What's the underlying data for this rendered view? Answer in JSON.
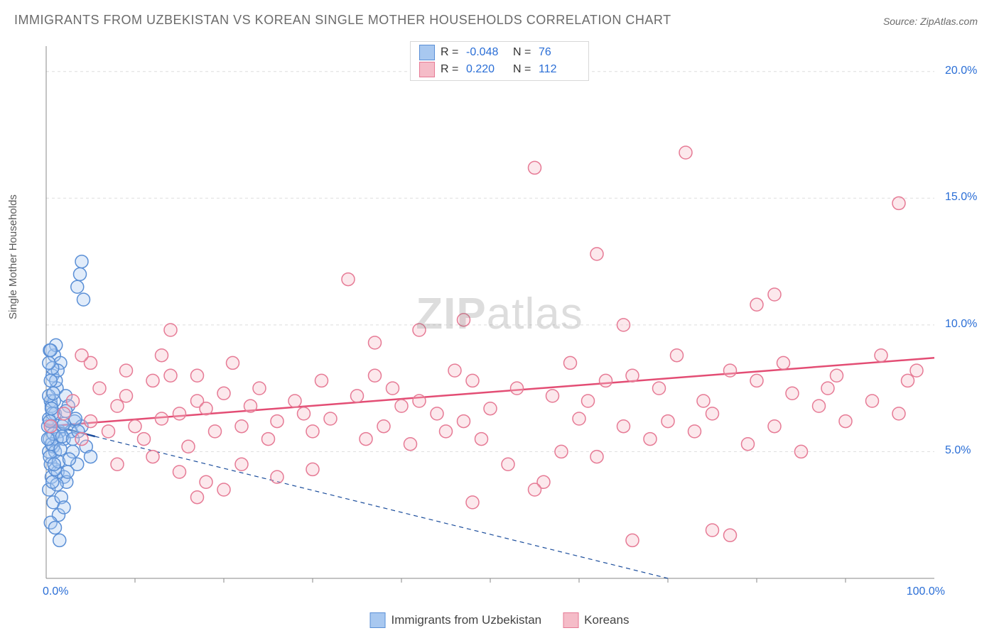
{
  "title": "IMMIGRANTS FROM UZBEKISTAN VS KOREAN SINGLE MOTHER HOUSEHOLDS CORRELATION CHART",
  "source_label": "Source:",
  "source_name": "ZipAtlas.com",
  "ylabel": "Single Mother Households",
  "watermark_zip": "ZIP",
  "watermark_atlas": "atlas",
  "chart": {
    "type": "scatter",
    "xlim": [
      0,
      100
    ],
    "ylim": [
      0,
      21
    ],
    "x_tick_labels": {
      "0": "0.0%",
      "100": "100.0%"
    },
    "y_tick_labels": {
      "5": "5.0%",
      "10": "10.0%",
      "15": "15.0%",
      "20": "20.0%"
    },
    "x_minor_ticks": [
      10,
      20,
      30,
      40,
      50,
      60,
      70,
      80,
      90
    ],
    "y_minor_ticks": [
      5,
      10,
      15,
      20
    ],
    "background_color": "#ffffff",
    "grid_color": "#dddddd",
    "axis_color": "#888888",
    "tick_label_color": "#2a6ed6",
    "marker_radius": 9,
    "marker_stroke_width": 1.5,
    "marker_fill_opacity": 0.35,
    "trend_line_width": 2.5,
    "trend_dash_width": 1.2
  },
  "series": [
    {
      "name": "Immigrants from Uzbekistan",
      "color_fill": "#a8c8f0",
      "color_stroke": "#5a8fd6",
      "trend_color": "#1b4d9c",
      "R_label": "R =",
      "R": "-0.048",
      "N_label": "N =",
      "N": "76",
      "trend": {
        "x1": 0,
        "y1": 6.1,
        "x2": 5.5,
        "y2": 5.6
      },
      "trend_ext": {
        "x1": 5.5,
        "y1": 5.6,
        "x2": 70,
        "y2": -0.5
      },
      "points": [
        [
          0.2,
          6.0
        ],
        [
          0.3,
          6.3
        ],
        [
          0.4,
          5.5
        ],
        [
          0.5,
          7.0
        ],
        [
          0.6,
          6.8
        ],
        [
          0.3,
          5.0
        ],
        [
          0.8,
          5.2
        ],
        [
          0.5,
          4.5
        ],
        [
          1.0,
          6.5
        ],
        [
          1.2,
          7.5
        ],
        [
          1.5,
          5.8
        ],
        [
          0.7,
          8.0
        ],
        [
          0.9,
          8.8
        ],
        [
          1.1,
          9.2
        ],
        [
          0.4,
          9.0
        ],
        [
          0.6,
          4.0
        ],
        [
          1.3,
          4.2
        ],
        [
          1.8,
          6.0
        ],
        [
          2.0,
          5.5
        ],
        [
          2.2,
          7.2
        ],
        [
          2.5,
          6.8
        ],
        [
          1.6,
          8.5
        ],
        [
          0.3,
          3.5
        ],
        [
          0.8,
          3.0
        ],
        [
          1.4,
          2.5
        ],
        [
          3.0,
          5.0
        ],
        [
          3.2,
          6.2
        ],
        [
          3.5,
          4.5
        ],
        [
          1.0,
          5.0
        ],
        [
          1.2,
          5.5
        ],
        [
          0.5,
          6.0
        ],
        [
          0.7,
          6.5
        ],
        [
          0.9,
          7.0
        ],
        [
          1.1,
          7.8
        ],
        [
          1.3,
          8.2
        ],
        [
          0.4,
          4.8
        ],
        [
          0.6,
          5.3
        ],
        [
          0.8,
          5.7
        ],
        [
          2.8,
          5.8
        ],
        [
          4.0,
          6.0
        ],
        [
          4.5,
          5.2
        ],
        [
          5.0,
          4.8
        ],
        [
          2.0,
          4.0
        ],
        [
          2.3,
          3.8
        ],
        [
          1.7,
          3.2
        ],
        [
          3.8,
          12.0
        ],
        [
          4.0,
          12.5
        ],
        [
          3.5,
          11.5
        ],
        [
          4.2,
          11.0
        ],
        [
          0.5,
          2.2
        ],
        [
          1.0,
          2.0
        ],
        [
          1.5,
          1.5
        ],
        [
          2.0,
          2.8
        ],
        [
          0.3,
          7.2
        ],
        [
          0.5,
          7.8
        ],
        [
          0.7,
          8.3
        ],
        [
          0.2,
          5.5
        ],
        [
          0.4,
          6.2
        ],
        [
          0.6,
          6.7
        ],
        [
          0.8,
          7.3
        ],
        [
          1.0,
          4.3
        ],
        [
          1.2,
          3.7
        ],
        [
          1.4,
          4.6
        ],
        [
          1.6,
          5.1
        ],
        [
          1.8,
          5.6
        ],
        [
          2.0,
          6.1
        ],
        [
          2.2,
          6.6
        ],
        [
          2.4,
          4.2
        ],
        [
          2.6,
          4.7
        ],
        [
          3.0,
          5.5
        ],
        [
          3.3,
          6.3
        ],
        [
          3.6,
          5.8
        ],
        [
          0.3,
          8.5
        ],
        [
          0.5,
          9.0
        ],
        [
          0.7,
          3.8
        ],
        [
          0.9,
          4.5
        ]
      ]
    },
    {
      "name": "Koreans",
      "color_fill": "#f5bcc8",
      "color_stroke": "#e67a95",
      "trend_color": "#e34d74",
      "R_label": "R =",
      "R": "0.220",
      "N_label": "N =",
      "N": "112",
      "trend": {
        "x1": 0,
        "y1": 6.0,
        "x2": 100,
        "y2": 8.7
      },
      "trend_ext": null,
      "points": [
        [
          2,
          6.5
        ],
        [
          3,
          7.0
        ],
        [
          4,
          5.5
        ],
        [
          5,
          6.2
        ],
        [
          6,
          7.5
        ],
        [
          7,
          5.8
        ],
        [
          8,
          6.8
        ],
        [
          9,
          7.2
        ],
        [
          10,
          6.0
        ],
        [
          11,
          5.5
        ],
        [
          12,
          7.8
        ],
        [
          13,
          6.3
        ],
        [
          14,
          8.0
        ],
        [
          15,
          6.5
        ],
        [
          16,
          5.2
        ],
        [
          17,
          7.0
        ],
        [
          18,
          6.7
        ],
        [
          19,
          5.8
        ],
        [
          20,
          7.3
        ],
        [
          21,
          8.5
        ],
        [
          22,
          6.0
        ],
        [
          23,
          6.8
        ],
        [
          24,
          7.5
        ],
        [
          25,
          5.5
        ],
        [
          26,
          6.2
        ],
        [
          14,
          9.8
        ],
        [
          28,
          7.0
        ],
        [
          29,
          6.5
        ],
        [
          30,
          5.8
        ],
        [
          31,
          7.8
        ],
        [
          32,
          6.3
        ],
        [
          17,
          3.2
        ],
        [
          20,
          3.5
        ],
        [
          35,
          7.2
        ],
        [
          36,
          5.5
        ],
        [
          37,
          8.0
        ],
        [
          38,
          6.0
        ],
        [
          39,
          7.5
        ],
        [
          40,
          6.8
        ],
        [
          41,
          5.3
        ],
        [
          42,
          7.0
        ],
        [
          34,
          11.8
        ],
        [
          44,
          6.5
        ],
        [
          45,
          5.8
        ],
        [
          46,
          8.2
        ],
        [
          47,
          6.2
        ],
        [
          48,
          7.8
        ],
        [
          49,
          5.5
        ],
        [
          50,
          6.7
        ],
        [
          37,
          9.3
        ],
        [
          52,
          4.5
        ],
        [
          53,
          7.5
        ],
        [
          42,
          9.8
        ],
        [
          47,
          10.2
        ],
        [
          56,
          3.8
        ],
        [
          57,
          7.2
        ],
        [
          58,
          5.0
        ],
        [
          59,
          8.5
        ],
        [
          60,
          6.3
        ],
        [
          61,
          7.0
        ],
        [
          62,
          4.8
        ],
        [
          63,
          7.8
        ],
        [
          48,
          3.0
        ],
        [
          65,
          6.0
        ],
        [
          66,
          8.0
        ],
        [
          55,
          16.2
        ],
        [
          68,
          5.5
        ],
        [
          69,
          7.5
        ],
        [
          70,
          6.2
        ],
        [
          71,
          8.8
        ],
        [
          55,
          3.5
        ],
        [
          73,
          5.8
        ],
        [
          74,
          7.0
        ],
        [
          75,
          6.5
        ],
        [
          65,
          10.0
        ],
        [
          77,
          8.2
        ],
        [
          62,
          12.8
        ],
        [
          79,
          5.3
        ],
        [
          80,
          7.8
        ],
        [
          72,
          16.8
        ],
        [
          82,
          6.0
        ],
        [
          83,
          8.5
        ],
        [
          84,
          7.3
        ],
        [
          85,
          5.0
        ],
        [
          80,
          10.8
        ],
        [
          87,
          6.8
        ],
        [
          88,
          7.5
        ],
        [
          89,
          8.0
        ],
        [
          90,
          6.2
        ],
        [
          77,
          1.7
        ],
        [
          75,
          1.9
        ],
        [
          93,
          7.0
        ],
        [
          94,
          8.8
        ],
        [
          96,
          14.8
        ],
        [
          96,
          6.5
        ],
        [
          97,
          7.8
        ],
        [
          98,
          8.2
        ],
        [
          82,
          11.2
        ],
        [
          66,
          1.5
        ],
        [
          8,
          4.5
        ],
        [
          12,
          4.8
        ],
        [
          15,
          4.2
        ],
        [
          18,
          3.8
        ],
        [
          22,
          4.5
        ],
        [
          26,
          4.0
        ],
        [
          30,
          4.3
        ],
        [
          5,
          8.5
        ],
        [
          9,
          8.2
        ],
        [
          13,
          8.8
        ],
        [
          17,
          8.0
        ],
        [
          4,
          8.8
        ],
        [
          0.5,
          6.0
        ]
      ]
    }
  ],
  "legend_bottom": [
    {
      "label": "Immigrants from Uzbekistan"
    },
    {
      "label": "Koreans"
    }
  ]
}
